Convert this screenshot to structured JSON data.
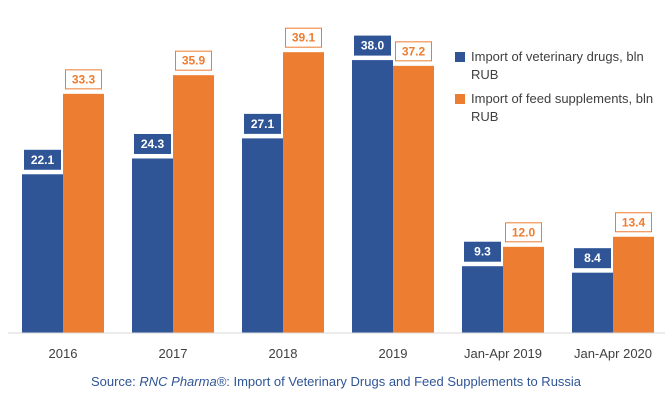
{
  "chart_data": {
    "type": "bar",
    "categories": [
      "2016",
      "2017",
      "2018",
      "2019",
      "Jan-Apr 2019",
      "Jan-Apr 2020"
    ],
    "series": [
      {
        "name": "Import of veterinary drugs, bln RUB",
        "values": [
          22.1,
          24.3,
          27.1,
          38.0,
          9.3,
          8.4
        ],
        "color": "#2f5597"
      },
      {
        "name": "Import of feed supplements, bln RUB",
        "values": [
          33.3,
          35.9,
          39.1,
          37.2,
          12.0,
          13.4
        ],
        "color": "#ed7d31"
      }
    ],
    "ylim": [
      0,
      44
    ],
    "grid": false,
    "legend_position": "top-right"
  },
  "source": {
    "prefix": "Source: ",
    "name": "RNC Pharma®",
    "suffix": ": Import of Veterinary Drugs and Feed Supplements to Russia"
  }
}
